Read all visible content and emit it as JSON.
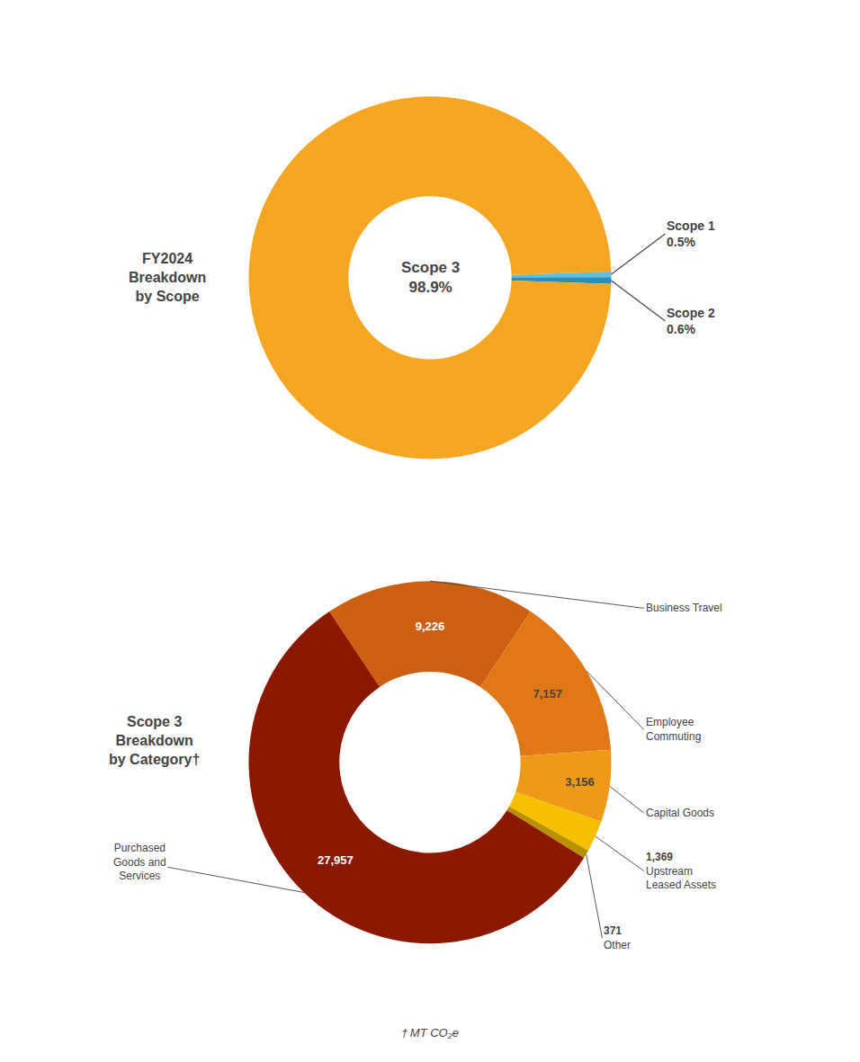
{
  "chart_data": [
    {
      "type": "pie",
      "title": "FY2024\nBreakdown\nby Scope",
      "categories": [
        "Scope 1",
        "Scope 2",
        "Scope 3"
      ],
      "values": [
        0.5,
        0.6,
        98.9
      ],
      "value_labels": [
        "0.5%",
        "0.6%",
        "98.9%"
      ],
      "colors": [
        "#5bbfde",
        "#2a8db8",
        "#F5A623"
      ],
      "data_labels": true
    },
    {
      "type": "pie",
      "title": "Scope 3\nBreakdown\nby Category†",
      "categories": [
        "Business Travel",
        "Employee\nCommuting",
        "Capital Goods",
        "Upstream\nLeased Assets",
        "Other",
        "Purchased\nGoods and\nServices"
      ],
      "values": [
        9226,
        7157,
        3156,
        1369,
        371,
        27957
      ],
      "value_labels": [
        "9,226",
        "7,157",
        "3,156",
        "1,369",
        "371",
        "27,957"
      ],
      "colors": [
        "#CC6010",
        "#E07818",
        "#F09818",
        "#F5C000",
        "#B89000",
        "#8B1800"
      ],
      "data_labels": true,
      "annotations": [
        "† MT CO₂e"
      ]
    }
  ]
}
